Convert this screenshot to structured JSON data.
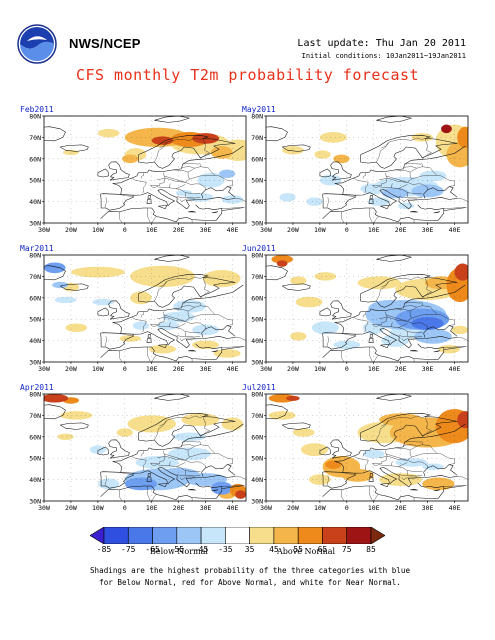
{
  "header": {
    "agency": "NWS/NCEP",
    "last_update": "Last update: Thu Jan 20 2011",
    "initial_conditions": "Initial conditions: 10Jan2011~19Jan2011",
    "title": "CFS monthly T2m probability forecast"
  },
  "axes": {
    "lat_labels": [
      "80N",
      "70N",
      "60N",
      "50N",
      "40N",
      "30N"
    ],
    "lon_labels": [
      "30W",
      "20W",
      "10W",
      "0",
      "10E",
      "20E",
      "30E",
      "40E"
    ]
  },
  "panels": [
    {
      "month": "Feb2011",
      "pattern": "north-warm-east-cool"
    },
    {
      "month": "May2011",
      "pattern": "central-cool-east-warm"
    },
    {
      "month": "Mar2011",
      "pattern": "mixed-light"
    },
    {
      "month": "Jun2011",
      "pattern": "strong-cool-east"
    },
    {
      "month": "Apr2011",
      "pattern": "south-cool"
    },
    {
      "month": "Jul2011",
      "pattern": "widespread-warm"
    }
  ],
  "colorbar": {
    "tick_labels": [
      "-85",
      "-75",
      "-65",
      "-55",
      "-45",
      "-35",
      "35",
      "45",
      "55",
      "65",
      "75",
      "85"
    ],
    "colors": [
      "#3b1fd0",
      "#2e4fe0",
      "#4b78e8",
      "#6d9ef0",
      "#9cc6f6",
      "#c8e6fa",
      "#ffffff",
      "#f6de8c",
      "#f4b64a",
      "#ee8a1c",
      "#c8411a",
      "#9e1414",
      "#7b2a0f"
    ],
    "below_label": "Below Normal",
    "above_label": "Above Normal"
  },
  "notes": {
    "line1": "Shadings are the highest probability of the three categories with blue",
    "line2": "for Below Normal, red for Above Normal, and white for Near Normal."
  }
}
